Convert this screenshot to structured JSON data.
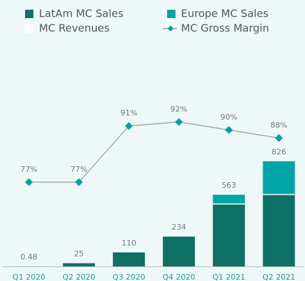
{
  "chart_data": {
    "type": "bar",
    "categories": [
      "Q1 2020",
      "Q2 2020",
      "Q3 2020",
      "Q4 2020",
      "Q1 2021",
      "Q2 2021"
    ],
    "series": [
      {
        "name": "LatAm MC Sales",
        "color": "#0f7065",
        "values": [
          0.48,
          25,
          110,
          234,
          490,
          565
        ]
      },
      {
        "name": "Europe MC Sales",
        "color": "#00a5a8",
        "values": [
          0,
          0,
          0,
          0,
          73,
          261
        ]
      },
      {
        "name": "MC Revenues",
        "color": "#ffffff",
        "values": [
          0.48,
          25,
          110,
          234,
          563,
          826
        ]
      },
      {
        "name": "MC Gross Margin",
        "color": "#0aa0a0",
        "line_color": "#9a9a9a",
        "axis": "y2",
        "values": [
          77,
          77,
          91,
          92,
          90,
          88
        ],
        "value_labels": [
          "77%",
          "77%",
          "91%",
          "92%",
          "90%",
          "88%"
        ]
      }
    ],
    "ylim": [
      0,
      1765
    ],
    "y2lim": [
      56,
      112
    ],
    "grid": false
  }
}
